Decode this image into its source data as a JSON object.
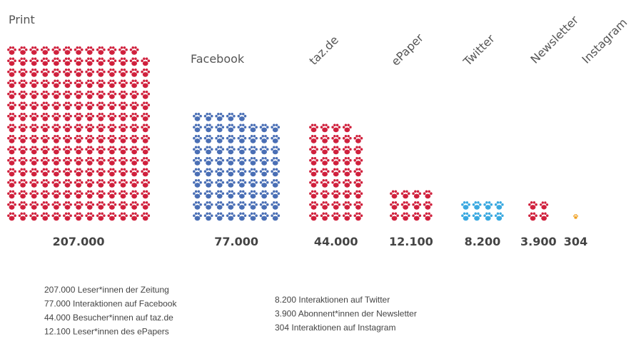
{
  "chart_data": {
    "type": "pictogram",
    "categories": [
      "Print",
      "Facebook",
      "taz.de",
      "ePaper",
      "Twitter",
      "Newsletter",
      "Instagram"
    ],
    "values": [
      207000,
      77000,
      44000,
      12100,
      8200,
      3900,
      304
    ],
    "value_labels": [
      "207.000",
      "77.000",
      "44.000",
      "12.100",
      "8.200",
      "3.900",
      "304"
    ],
    "colors": [
      "#d0213d",
      "#4a6fb5",
      "#d0213d",
      "#d0213d",
      "#3aa9e0",
      "#d0213d",
      "#f0a020"
    ],
    "annotations": [
      "207.000 Leser*innen der Zeitung",
      "77.000 Interaktionen auf Facebook",
      "44.000 Besucher*innen auf taz.de",
      "12.100 Leser*innen des ePapers",
      "8.200 Interaktionen auf Twitter",
      "3.900 Abonnent*innen der Newsletter",
      "304 Interaktionen auf Instagram"
    ]
  }
}
